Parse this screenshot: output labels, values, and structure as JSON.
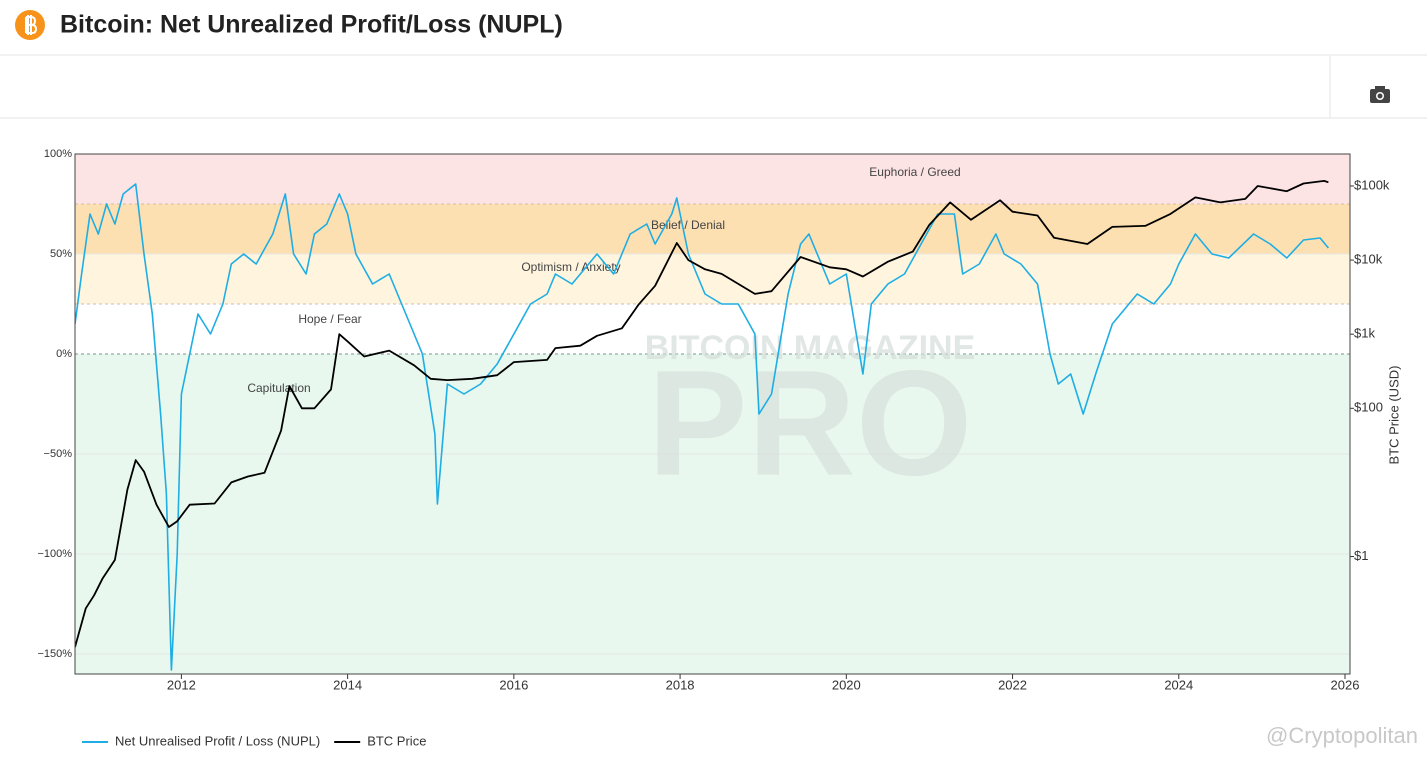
{
  "chart_data": {
    "type": "line",
    "title": "Bitcoin: Net Unrealized Profit/Loss (NUPL)",
    "y2label": "BTC Price (USD)",
    "watermark": [
      "BITCOIN MAGAZINE",
      "PRO"
    ],
    "credit": "@Cryptopolitan",
    "xlim": [
      2010.72,
      2026.06
    ],
    "xticks": [
      2012,
      2014,
      2016,
      2018,
      2020,
      2022,
      2024,
      2026
    ],
    "ylim": [
      -160,
      100
    ],
    "yticks": [
      {
        "value": 100,
        "label": "100%"
      },
      {
        "value": 50,
        "label": "50%"
      },
      {
        "value": 0,
        "label": "0%"
      },
      {
        "value": -50,
        "label": "−50%"
      },
      {
        "value": -100,
        "label": "−100%"
      },
      {
        "value": -150,
        "label": "−150%"
      }
    ],
    "y2lim": [
      0.026,
      270000
    ],
    "y2scale": "log",
    "y2ticks": [
      {
        "value": 1,
        "label": "$1"
      },
      {
        "value": 100,
        "label": "$100"
      },
      {
        "value": 1000,
        "label": "$1k"
      },
      {
        "value": 10000,
        "label": "$10k"
      },
      {
        "value": 100000,
        "label": "$100k"
      }
    ],
    "grid": true,
    "legend": "bottom-left",
    "zones": [
      {
        "label": "Euphoria / Greed",
        "from": 75,
        "to": 100,
        "color": "#fde4e4"
      },
      {
        "label": "Belief / Denial",
        "from": 50,
        "to": 75,
        "color": "#fde0b2"
      },
      {
        "label": "Optimism / Anxiety",
        "from": 25,
        "to": 50,
        "color": "#fff5df"
      },
      {
        "label": "Hope / Fear",
        "from": 0,
        "to": 25,
        "color": "#ffffff"
      },
      {
        "label": "Capitulation",
        "from": -160,
        "to": 0,
        "color": "#e8f8ef"
      }
    ],
    "series": [
      {
        "name": "Net Unrealised Profit / Loss (NUPL)",
        "color": "#1eaee4",
        "x": [
          2010.72,
          2010.8,
          2010.9,
          2011.0,
          2011.1,
          2011.2,
          2011.3,
          2011.45,
          2011.55,
          2011.65,
          2011.75,
          2011.82,
          2011.88,
          2011.95,
          2012.0,
          2012.1,
          2012.2,
          2012.35,
          2012.5,
          2012.6,
          2012.75,
          2012.9,
          2013.1,
          2013.25,
          2013.35,
          2013.5,
          2013.6,
          2013.75,
          2013.9,
          2014.0,
          2014.1,
          2014.3,
          2014.5,
          2014.7,
          2014.9,
          2015.05,
          2015.08,
          2015.2,
          2015.4,
          2015.6,
          2015.8,
          2016.0,
          2016.2,
          2016.4,
          2016.5,
          2016.7,
          2016.9,
          2017.0,
          2017.2,
          2017.4,
          2017.6,
          2017.7,
          2017.9,
          2017.96,
          2018.1,
          2018.3,
          2018.5,
          2018.7,
          2018.9,
          2018.95,
          2019.1,
          2019.3,
          2019.45,
          2019.55,
          2019.8,
          2020.0,
          2020.2,
          2020.3,
          2020.5,
          2020.7,
          2020.9,
          2021.1,
          2021.3,
          2021.4,
          2021.6,
          2021.8,
          2021.9,
          2022.1,
          2022.3,
          2022.45,
          2022.55,
          2022.7,
          2022.85,
          2023.0,
          2023.2,
          2023.5,
          2023.7,
          2023.9,
          2024.0,
          2024.2,
          2024.4,
          2024.6,
          2024.9,
          2025.1,
          2025.3,
          2025.5,
          2025.7,
          2025.8
        ],
        "values": [
          15,
          40,
          70,
          60,
          75,
          65,
          80,
          85,
          50,
          20,
          -30,
          -70,
          -158,
          -100,
          -20,
          0,
          20,
          10,
          25,
          45,
          50,
          45,
          60,
          80,
          50,
          40,
          60,
          65,
          80,
          70,
          50,
          35,
          40,
          20,
          0,
          -40,
          -75,
          -15,
          -20,
          -15,
          -5,
          10,
          25,
          30,
          40,
          35,
          45,
          50,
          40,
          60,
          65,
          55,
          70,
          78,
          50,
          30,
          25,
          25,
          10,
          -30,
          -20,
          30,
          55,
          60,
          35,
          40,
          -10,
          25,
          35,
          40,
          55,
          70,
          70,
          40,
          45,
          60,
          50,
          45,
          35,
          0,
          -15,
          -10,
          -30,
          -10,
          15,
          30,
          25,
          35,
          45,
          60,
          50,
          48,
          60,
          55,
          48,
          57,
          58,
          53
        ]
      },
      {
        "name": "BTC Price",
        "color": "#000000",
        "axis": "y2",
        "x": [
          2010.72,
          2010.85,
          2010.95,
          2011.05,
          2011.2,
          2011.35,
          2011.45,
          2011.55,
          2011.7,
          2011.85,
          2011.95,
          2012.1,
          2012.4,
          2012.6,
          2012.8,
          2013.0,
          2013.2,
          2013.3,
          2013.45,
          2013.6,
          2013.8,
          2013.9,
          2014.0,
          2014.2,
          2014.5,
          2014.8,
          2015.0,
          2015.2,
          2015.5,
          2015.8,
          2016.0,
          2016.4,
          2016.5,
          2016.8,
          2017.0,
          2017.3,
          2017.5,
          2017.7,
          2017.96,
          2018.1,
          2018.3,
          2018.5,
          2018.9,
          2019.1,
          2019.45,
          2019.8,
          2020.0,
          2020.2,
          2020.5,
          2020.8,
          2021.0,
          2021.25,
          2021.5,
          2021.85,
          2022.0,
          2022.3,
          2022.5,
          2022.9,
          2023.2,
          2023.6,
          2023.9,
          2024.2,
          2024.5,
          2024.8,
          2024.95,
          2025.3,
          2025.5,
          2025.75,
          2025.8
        ],
        "values": [
          0.06,
          0.2,
          0.3,
          0.5,
          0.9,
          8,
          20,
          14,
          5,
          2.5,
          3,
          5,
          5.2,
          10,
          12,
          13.5,
          50,
          200,
          100,
          100,
          180,
          1000,
          800,
          500,
          600,
          380,
          250,
          240,
          250,
          280,
          420,
          450,
          650,
          700,
          950,
          1200,
          2500,
          4500,
          17000,
          10000,
          7500,
          6500,
          3500,
          3800,
          11000,
          8000,
          7500,
          6000,
          9500,
          13000,
          30000,
          60000,
          35000,
          64000,
          45000,
          40000,
          20000,
          16500,
          28000,
          29000,
          42000,
          70000,
          60000,
          67000,
          100000,
          85000,
          108000,
          117000,
          112000
        ]
      }
    ]
  }
}
